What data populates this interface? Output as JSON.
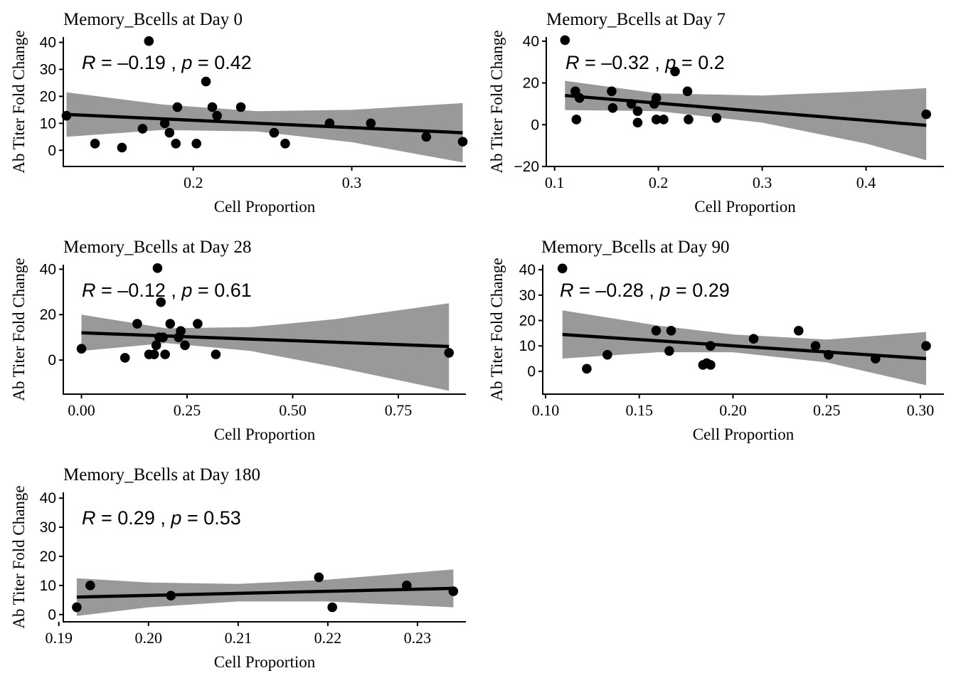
{
  "chart_data": [
    {
      "type": "scatter",
      "title": "Memory_Bcells at Day 0",
      "xlabel": "Cell Proportion",
      "ylabel": "Ab Titer Fold Change",
      "stat": {
        "r_label": "R",
        "r_value": "–0.19",
        "p_label": "p",
        "p_value": "0.42"
      },
      "xlim": [
        0.118,
        0.372
      ],
      "ylim": [
        -6,
        42
      ],
      "xticks": [
        0.2,
        0.3
      ],
      "xtick_labels": [
        "0.2",
        "0.3"
      ],
      "yticks": [
        0,
        10,
        20,
        30,
        40
      ],
      "ytick_labels": [
        "0",
        "10",
        "20",
        "30",
        "40"
      ],
      "points": [
        [
          0.12,
          12.8
        ],
        [
          0.138,
          2.5
        ],
        [
          0.155,
          1
        ],
        [
          0.168,
          8
        ],
        [
          0.172,
          40.5
        ],
        [
          0.182,
          10
        ],
        [
          0.185,
          6.5
        ],
        [
          0.189,
          2.5
        ],
        [
          0.19,
          16
        ],
        [
          0.202,
          2.5
        ],
        [
          0.208,
          25.5
        ],
        [
          0.212,
          16
        ],
        [
          0.215,
          12.8
        ],
        [
          0.23,
          16
        ],
        [
          0.251,
          6.5
        ],
        [
          0.258,
          2.5
        ],
        [
          0.286,
          10
        ],
        [
          0.312,
          10
        ],
        [
          0.347,
          5
        ],
        [
          0.37,
          3.2
        ]
      ],
      "fit": {
        "x": [
          0.12,
          0.37
        ],
        "y": [
          13.3,
          6.5
        ]
      },
      "band": {
        "x": [
          0.12,
          0.18,
          0.24,
          0.3,
          0.37
        ],
        "lower": [
          5,
          7.5,
          7,
          3,
          -4.5
        ],
        "upper": [
          21.5,
          17,
          14.5,
          15,
          17.5
        ]
      },
      "grid": false,
      "legend": "none"
    },
    {
      "type": "scatter",
      "title": "Memory_Bcells at Day 7",
      "xlabel": "Cell Proportion",
      "ylabel": "Ab Titer Fold Change",
      "stat": {
        "r_label": "R",
        "r_value": "–0.32",
        "p_label": "p",
        "p_value": "0.2"
      },
      "xlim": [
        0.092,
        0.475
      ],
      "ylim": [
        -20,
        42
      ],
      "xticks": [
        0.1,
        0.2,
        0.3,
        0.4
      ],
      "xtick_labels": [
        "0.1",
        "0.2",
        "0.3",
        "0.4"
      ],
      "yticks": [
        -20,
        0,
        20,
        40
      ],
      "ytick_labels": [
        "−20",
        "0",
        "20",
        "40"
      ],
      "points": [
        [
          0.11,
          40.5
        ],
        [
          0.12,
          16
        ],
        [
          0.121,
          2.5
        ],
        [
          0.124,
          12.8
        ],
        [
          0.155,
          16
        ],
        [
          0.156,
          8
        ],
        [
          0.174,
          10
        ],
        [
          0.18,
          6.5
        ],
        [
          0.18,
          1
        ],
        [
          0.196,
          10
        ],
        [
          0.198,
          12.8
        ],
        [
          0.198,
          2.5
        ],
        [
          0.205,
          2.5
        ],
        [
          0.216,
          25.5
        ],
        [
          0.228,
          16
        ],
        [
          0.229,
          2.5
        ],
        [
          0.256,
          3.2
        ],
        [
          0.458,
          5
        ]
      ],
      "fit": {
        "x": [
          0.11,
          0.458
        ],
        "y": [
          14,
          -0.3
        ]
      },
      "band": {
        "x": [
          0.11,
          0.2,
          0.3,
          0.4,
          0.458
        ],
        "lower": [
          7,
          6.5,
          1,
          -9,
          -17
        ],
        "upper": [
          21,
          15,
          14,
          16,
          17.5
        ]
      },
      "grid": false,
      "legend": "none"
    },
    {
      "type": "scatter",
      "title": "Memory_Bcells at Day 28",
      "xlabel": "Cell Proportion",
      "ylabel": "Ab Titer Fold Change",
      "stat": {
        "r_label": "R",
        "r_value": "–0.12",
        "p_label": "p",
        "p_value": "0.61"
      },
      "xlim": [
        -0.043,
        0.91
      ],
      "ylim": [
        -15,
        42
      ],
      "xticks": [
        0,
        0.25,
        0.5,
        0.75
      ],
      "xtick_labels": [
        "0.00",
        "0.25",
        "0.50",
        "0.75"
      ],
      "yticks": [
        0,
        20,
        40
      ],
      "ytick_labels": [
        "0",
        "20",
        "40"
      ],
      "points": [
        [
          0.0,
          5
        ],
        [
          0.103,
          1
        ],
        [
          0.132,
          16
        ],
        [
          0.16,
          2.5
        ],
        [
          0.172,
          2.5
        ],
        [
          0.177,
          6.5
        ],
        [
          0.18,
          40.5
        ],
        [
          0.184,
          10
        ],
        [
          0.188,
          25.5
        ],
        [
          0.193,
          10
        ],
        [
          0.198,
          2.5
        ],
        [
          0.21,
          16
        ],
        [
          0.23,
          10
        ],
        [
          0.235,
          12.8
        ],
        [
          0.245,
          6.5
        ],
        [
          0.275,
          16
        ],
        [
          0.318,
          2.5
        ],
        [
          0.87,
          3.2
        ]
      ],
      "fit": {
        "x": [
          0.0,
          0.87
        ],
        "y": [
          12,
          6
        ]
      },
      "band": {
        "x": [
          0.0,
          0.2,
          0.4,
          0.6,
          0.87
        ],
        "lower": [
          4,
          7.5,
          4,
          -3,
          -13.5
        ],
        "upper": [
          20,
          14,
          14.5,
          18,
          25
        ]
      },
      "grid": false,
      "legend": "none"
    },
    {
      "type": "scatter",
      "title": "Memory_Bcells at Day 90",
      "xlabel": "Cell Proportion",
      "ylabel": "Ab Titer Fold Change",
      "stat": {
        "r_label": "R",
        "r_value": "–0.28",
        "p_label": "p",
        "p_value": "0.29"
      },
      "xlim": [
        0.0985,
        0.3125
      ],
      "ylim": [
        -9,
        42
      ],
      "xticks": [
        0.1,
        0.15,
        0.2,
        0.25,
        0.3
      ],
      "xtick_labels": [
        "0.10",
        "0.15",
        "0.20",
        "0.25",
        "0.30"
      ],
      "yticks": [
        0,
        10,
        20,
        30,
        40
      ],
      "ytick_labels": [
        "0",
        "10",
        "20",
        "30",
        "40"
      ],
      "points": [
        [
          0.109,
          40.5
        ],
        [
          0.122,
          1
        ],
        [
          0.133,
          6.5
        ],
        [
          0.159,
          16
        ],
        [
          0.166,
          8
        ],
        [
          0.167,
          16
        ],
        [
          0.184,
          2.5
        ],
        [
          0.186,
          3.2
        ],
        [
          0.188,
          2.5
        ],
        [
          0.188,
          10
        ],
        [
          0.211,
          12.8
        ],
        [
          0.235,
          16
        ],
        [
          0.244,
          10
        ],
        [
          0.251,
          6.5
        ],
        [
          0.276,
          5
        ],
        [
          0.303,
          10
        ]
      ],
      "fit": {
        "x": [
          0.109,
          0.303
        ],
        "y": [
          14.5,
          5
        ]
      },
      "band": {
        "x": [
          0.109,
          0.16,
          0.2,
          0.25,
          0.303
        ],
        "lower": [
          5,
          7.5,
          7.5,
          3.5,
          -5.5
        ],
        "upper": [
          24,
          18,
          14.5,
          12.5,
          15.5
        ]
      },
      "grid": false,
      "legend": "none"
    },
    {
      "type": "scatter",
      "title": "Memory_Bcells at Day 180",
      "xlabel": "Cell Proportion",
      "ylabel": "Ab Titer Fold Change",
      "stat": {
        "r_label": "R",
        "r_value": "0.29",
        "p_label": "p",
        "p_value": "0.53"
      },
      "xlim": [
        0.1905,
        0.2354
      ],
      "ylim": [
        -2.5,
        42
      ],
      "xticks": [
        0.19,
        0.2,
        0.21,
        0.22,
        0.23
      ],
      "xtick_labels": [
        "0.19",
        "0.20",
        "0.21",
        "0.22",
        "0.23"
      ],
      "yticks": [
        0,
        10,
        20,
        30,
        40
      ],
      "ytick_labels": [
        "0",
        "10",
        "20",
        "30",
        "40"
      ],
      "points": [
        [
          0.192,
          2.5
        ],
        [
          0.1935,
          10
        ],
        [
          0.2025,
          6.5
        ],
        [
          0.219,
          12.8
        ],
        [
          0.2205,
          2.5
        ],
        [
          0.2288,
          10
        ],
        [
          0.234,
          8
        ]
      ],
      "fit": {
        "x": [
          0.192,
          0.234
        ],
        "y": [
          6,
          9
        ]
      },
      "band": {
        "x": [
          0.192,
          0.2,
          0.21,
          0.22,
          0.234
        ],
        "lower": [
          -0.5,
          2.5,
          4.5,
          4.5,
          2.5
        ],
        "upper": [
          12.5,
          11,
          10.5,
          12,
          15.5
        ]
      },
      "grid": false,
      "legend": "none"
    }
  ]
}
